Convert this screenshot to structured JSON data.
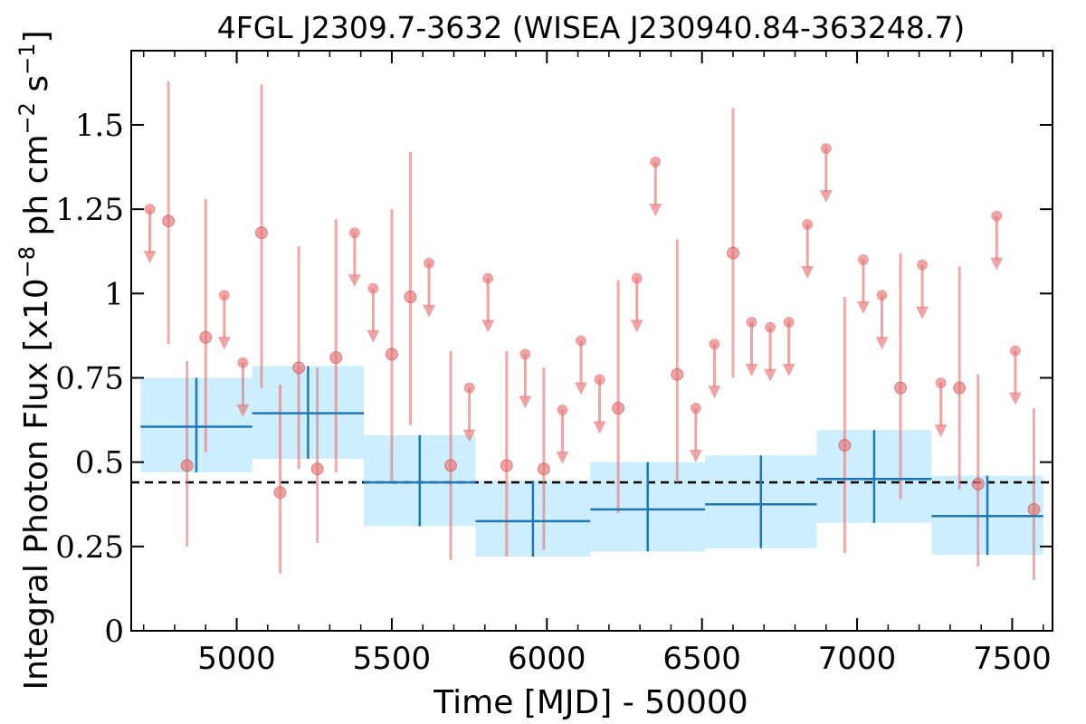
{
  "chart_data": {
    "type": "scatter",
    "title": "4FGL J2309.7-3632 (WISEA J230940.84-363248.7)",
    "xlabel": "Time [MJD] - 50000",
    "ylabel": "Integral Photon Flux [x10",
    "ylabel_sup1": "−8",
    "ylabel_mid": " ph cm",
    "ylabel_sup2": "−2",
    "ylabel_mid2": " s",
    "ylabel_sup3": "−1",
    "ylabel_end": "]",
    "xlim": [
      4660,
      7630
    ],
    "ylim": [
      0,
      1.72
    ],
    "xticks": [
      5000,
      5500,
      6000,
      6500,
      7000,
      7500
    ],
    "xtick_labels": [
      "5000",
      "5500",
      "6000",
      "6500",
      "7000",
      "7500"
    ],
    "yticks": [
      0,
      0.25,
      0.5,
      0.75,
      1,
      1.25,
      1.5
    ],
    "ytick_labels": [
      "0",
      "0.25",
      "0.5",
      "0.75",
      "1",
      "1.25",
      "1.5"
    ],
    "mean_flux": 0.44,
    "colors": {
      "short_bins": "#e57373",
      "long_bins": "#1f77b4",
      "long_band": "#cdeefc",
      "mean_line": "#000000"
    },
    "short_bin_detections": [
      {
        "x": 4780,
        "y": 1.215,
        "lo": 0.85,
        "hi": 1.63
      },
      {
        "x": 4840,
        "y": 0.49,
        "lo": 0.25,
        "hi": 0.8
      },
      {
        "x": 4900,
        "y": 0.87,
        "lo": 0.53,
        "hi": 1.28
      },
      {
        "x": 5080,
        "y": 1.18,
        "lo": 0.72,
        "hi": 1.62
      },
      {
        "x": 5140,
        "y": 0.41,
        "lo": 0.17,
        "hi": 0.73
      },
      {
        "x": 5200,
        "y": 0.78,
        "lo": 0.48,
        "hi": 1.14
      },
      {
        "x": 5260,
        "y": 0.48,
        "lo": 0.26,
        "hi": 0.78
      },
      {
        "x": 5320,
        "y": 0.81,
        "lo": 0.47,
        "hi": 1.22
      },
      {
        "x": 5500,
        "y": 0.82,
        "lo": 0.44,
        "hi": 1.25
      },
      {
        "x": 5560,
        "y": 0.99,
        "lo": 0.61,
        "hi": 1.42
      },
      {
        "x": 5690,
        "y": 0.49,
        "lo": 0.21,
        "hi": 0.83
      },
      {
        "x": 5870,
        "y": 0.49,
        "lo": 0.22,
        "hi": 0.83
      },
      {
        "x": 5990,
        "y": 0.48,
        "lo": 0.24,
        "hi": 0.78
      },
      {
        "x": 6230,
        "y": 0.66,
        "lo": 0.35,
        "hi": 1.04
      },
      {
        "x": 6420,
        "y": 0.76,
        "lo": 0.44,
        "hi": 1.16
      },
      {
        "x": 6600,
        "y": 1.12,
        "lo": 0.75,
        "hi": 1.55
      },
      {
        "x": 6960,
        "y": 0.55,
        "lo": 0.23,
        "hi": 0.99
      },
      {
        "x": 7140,
        "y": 0.72,
        "lo": 0.39,
        "hi": 1.12
      },
      {
        "x": 7330,
        "y": 0.72,
        "lo": 0.42,
        "hi": 1.08
      },
      {
        "x": 7390,
        "y": 0.435,
        "lo": 0.19,
        "hi": 0.76
      },
      {
        "x": 7570,
        "y": 0.36,
        "lo": 0.15,
        "hi": 0.66
      }
    ],
    "short_bin_upper_limits": [
      {
        "x": 4720,
        "y": 1.25
      },
      {
        "x": 4960,
        "y": 0.995
      },
      {
        "x": 5020,
        "y": 0.795
      },
      {
        "x": 5380,
        "y": 1.18
      },
      {
        "x": 5440,
        "y": 1.015
      },
      {
        "x": 5620,
        "y": 1.09
      },
      {
        "x": 5750,
        "y": 0.72
      },
      {
        "x": 5810,
        "y": 1.045
      },
      {
        "x": 5930,
        "y": 0.82
      },
      {
        "x": 6050,
        "y": 0.655
      },
      {
        "x": 6110,
        "y": 0.86
      },
      {
        "x": 6170,
        "y": 0.745
      },
      {
        "x": 6290,
        "y": 1.045
      },
      {
        "x": 6350,
        "y": 1.39
      },
      {
        "x": 6480,
        "y": 0.66
      },
      {
        "x": 6540,
        "y": 0.85
      },
      {
        "x": 6660,
        "y": 0.915
      },
      {
        "x": 6720,
        "y": 0.9
      },
      {
        "x": 6780,
        "y": 0.915
      },
      {
        "x": 6840,
        "y": 1.205
      },
      {
        "x": 6900,
        "y": 1.43
      },
      {
        "x": 7020,
        "y": 1.1
      },
      {
        "x": 7080,
        "y": 0.995
      },
      {
        "x": 7210,
        "y": 1.085
      },
      {
        "x": 7270,
        "y": 0.735
      },
      {
        "x": 7450,
        "y": 1.23
      },
      {
        "x": 7510,
        "y": 0.83
      }
    ],
    "long_bins": [
      {
        "x0": 4690,
        "x1": 5050,
        "xc": 4870,
        "y": 0.605,
        "lo": 0.47,
        "hi": 0.75
      },
      {
        "x0": 5050,
        "x1": 5410,
        "xc": 5230,
        "y": 0.645,
        "lo": 0.51,
        "hi": 0.785
      },
      {
        "x0": 5410,
        "x1": 5770,
        "xc": 5590,
        "y": 0.44,
        "lo": 0.31,
        "hi": 0.58
      },
      {
        "x0": 5770,
        "x1": 6140,
        "xc": 5955,
        "y": 0.325,
        "lo": 0.22,
        "hi": 0.445
      },
      {
        "x0": 6140,
        "x1": 6510,
        "xc": 6325,
        "y": 0.36,
        "lo": 0.235,
        "hi": 0.5
      },
      {
        "x0": 6510,
        "x1": 6870,
        "xc": 6690,
        "y": 0.375,
        "lo": 0.245,
        "hi": 0.52
      },
      {
        "x0": 6870,
        "x1": 7240,
        "xc": 7055,
        "y": 0.45,
        "lo": 0.32,
        "hi": 0.595
      },
      {
        "x0": 7240,
        "x1": 7600,
        "xc": 7420,
        "y": 0.34,
        "lo": 0.225,
        "hi": 0.46
      }
    ]
  }
}
